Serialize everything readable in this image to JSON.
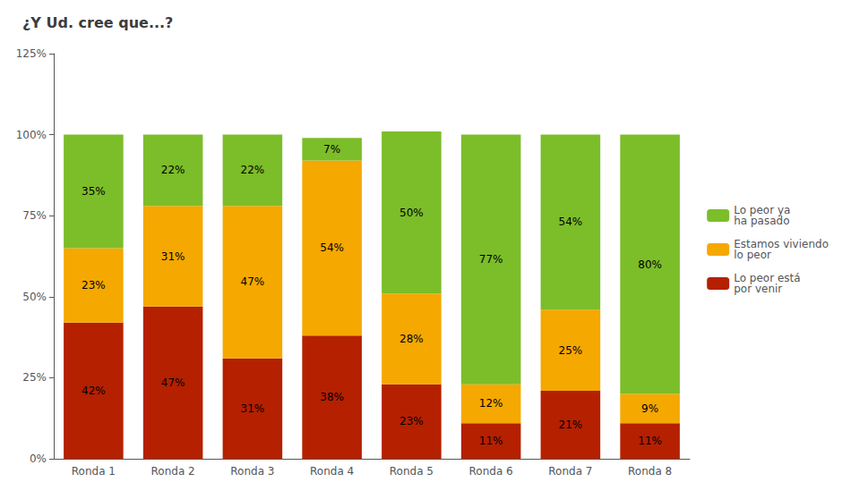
{
  "chart_data": {
    "type": "bar",
    "stacked": true,
    "title": "¿Y Ud. cree que...?",
    "categories": [
      "Ronda 1",
      "Ronda 2",
      "Ronda 3",
      "Ronda 4",
      "Ronda 5",
      "Ronda 6",
      "Ronda 7",
      "Ronda 8"
    ],
    "series": [
      {
        "name": "Lo peor está\npor venir",
        "color": "#b52000",
        "values": [
          42,
          47,
          31,
          38,
          23,
          11,
          21,
          11
        ],
        "value_labels": [
          "42%",
          "47%",
          "31%",
          "38%",
          "23%",
          "11%",
          "21%",
          "11%"
        ]
      },
      {
        "name": "Estamos viviendo\nlo peor",
        "color": "#f5a800",
        "values": [
          23,
          31,
          47,
          54,
          28,
          12,
          25,
          9
        ],
        "value_labels": [
          "23%",
          "31%",
          "47%",
          "54%",
          "28%",
          "12%",
          "25%",
          "9%"
        ]
      },
      {
        "name": "Lo peor ya\nha pasado",
        "color": "#7cbd2a",
        "values": [
          35,
          22,
          22,
          7,
          50,
          77,
          54,
          80
        ],
        "value_labels": [
          "35%",
          "22%",
          "22%",
          "7%",
          "50%",
          "77%",
          "54%",
          "80%"
        ]
      }
    ],
    "ylim": [
      0,
      125
    ],
    "yticks": [
      {
        "value": 0,
        "label": "0%"
      },
      {
        "value": 25,
        "label": "25%"
      },
      {
        "value": 50,
        "label": "50%"
      },
      {
        "value": 75,
        "label": "75%"
      },
      {
        "value": 100,
        "label": "100%"
      },
      {
        "value": 125,
        "label": "125%"
      }
    ],
    "grid": false,
    "legend": "right",
    "data_labels": true
  }
}
